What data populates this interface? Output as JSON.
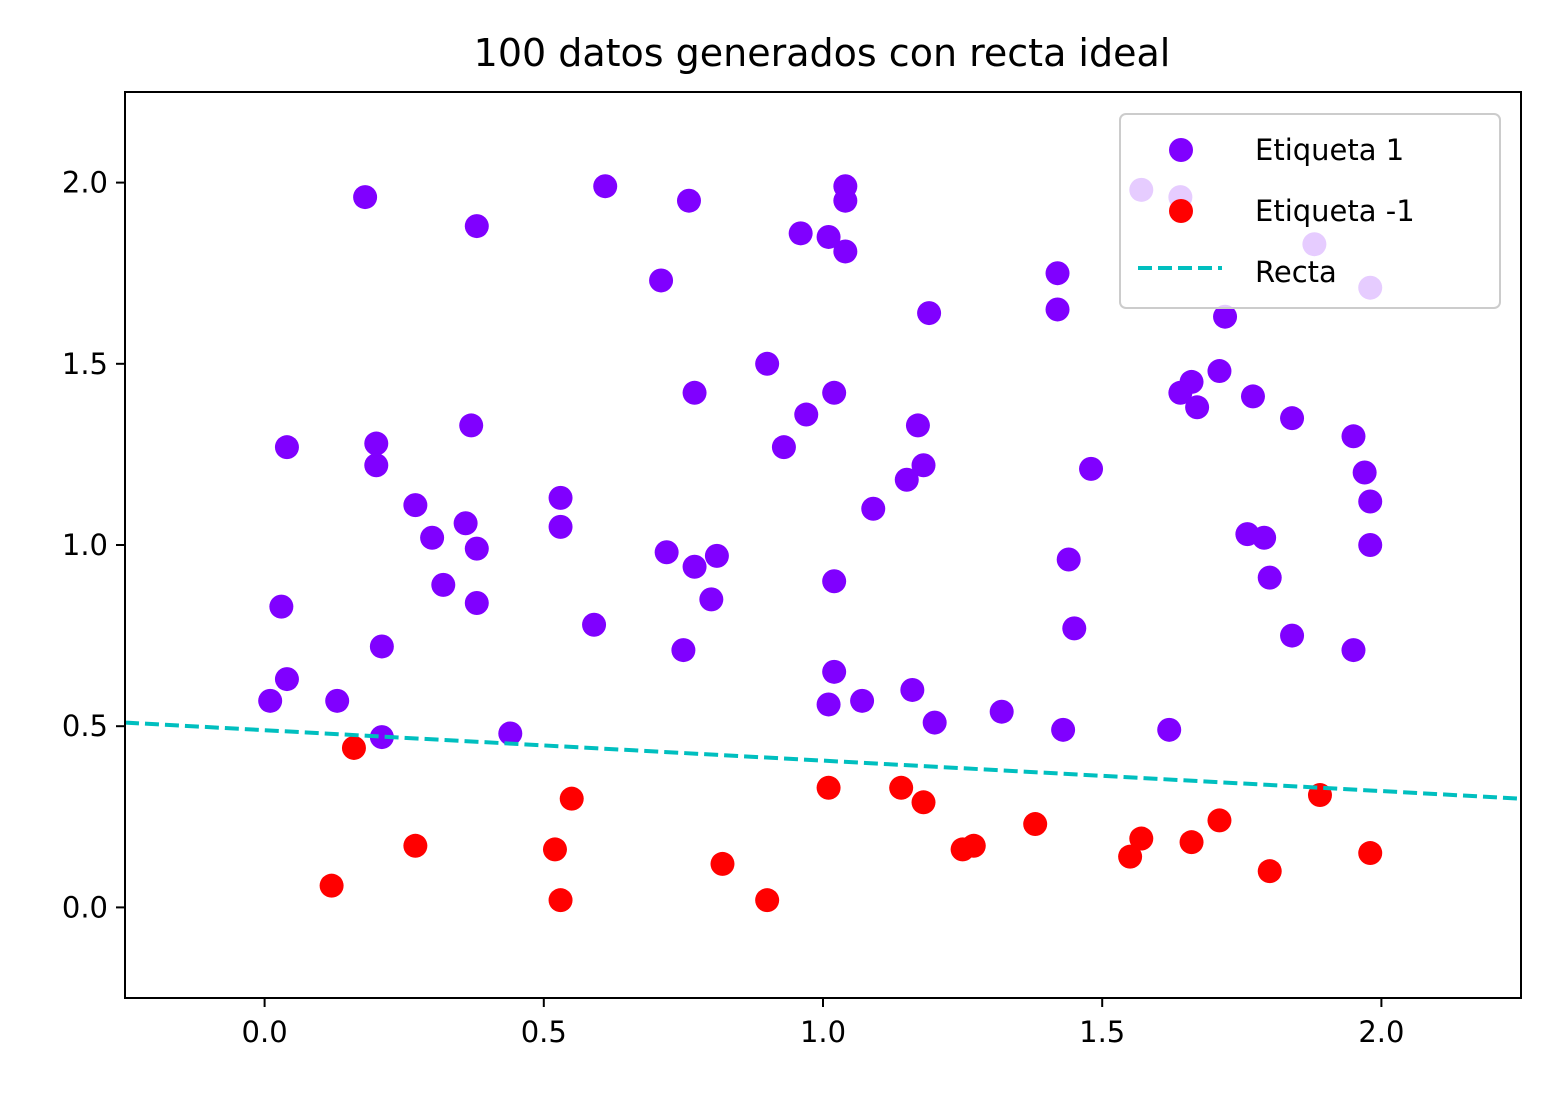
{
  "chart_data": {
    "type": "scatter",
    "title": "100 datos generados con recta ideal",
    "xlabel": "",
    "ylabel": "",
    "xlim": [
      -0.25,
      2.25
    ],
    "ylim": [
      -0.25,
      2.25
    ],
    "x_ticks": [
      "0.0",
      "0.5",
      "1.0",
      "1.5",
      "2.0"
    ],
    "y_ticks": [
      "0.0",
      "0.5",
      "1.0",
      "1.5",
      "2.0"
    ],
    "grid": false,
    "legend_position": "top-right",
    "colors": {
      "label1": "#8000ff",
      "label_neg1": "#ff0000",
      "line": "#00bfbf"
    },
    "series": [
      {
        "name": "Etiqueta 1",
        "points": [
          [
            0.18,
            1.96
          ],
          [
            0.38,
            1.88
          ],
          [
            0.61,
            1.99
          ],
          [
            0.76,
            1.95
          ],
          [
            1.04,
            1.99
          ],
          [
            1.04,
            1.95
          ],
          [
            0.96,
            1.86
          ],
          [
            1.01,
            1.85
          ],
          [
            1.04,
            1.81
          ],
          [
            0.71,
            1.73
          ],
          [
            1.19,
            1.64
          ],
          [
            1.42,
            1.75
          ],
          [
            1.42,
            1.65
          ],
          [
            1.57,
            1.98
          ],
          [
            1.64,
            1.96
          ],
          [
            1.88,
            1.83
          ],
          [
            1.98,
            1.71
          ],
          [
            1.72,
            1.63
          ],
          [
            0.9,
            1.5
          ],
          [
            0.77,
            1.42
          ],
          [
            1.02,
            1.42
          ],
          [
            0.97,
            1.36
          ],
          [
            0.93,
            1.27
          ],
          [
            1.17,
            1.33
          ],
          [
            1.18,
            1.22
          ],
          [
            1.15,
            1.18
          ],
          [
            1.09,
            1.1
          ],
          [
            1.48,
            1.21
          ],
          [
            1.64,
            1.42
          ],
          [
            1.66,
            1.45
          ],
          [
            1.67,
            1.38
          ],
          [
            1.71,
            1.48
          ],
          [
            1.77,
            1.41
          ],
          [
            1.84,
            1.35
          ],
          [
            1.95,
            1.3
          ],
          [
            1.97,
            1.2
          ],
          [
            1.98,
            1.12
          ],
          [
            1.98,
            1.0
          ],
          [
            1.76,
            1.03
          ],
          [
            1.79,
            1.02
          ],
          [
            1.8,
            0.91
          ],
          [
            1.84,
            0.75
          ],
          [
            1.95,
            0.71
          ],
          [
            0.04,
            1.27
          ],
          [
            0.2,
            1.28
          ],
          [
            0.2,
            1.22
          ],
          [
            0.37,
            1.33
          ],
          [
            0.27,
            1.11
          ],
          [
            0.3,
            1.02
          ],
          [
            0.36,
            1.06
          ],
          [
            0.38,
            0.99
          ],
          [
            0.32,
            0.89
          ],
          [
            0.38,
            0.84
          ],
          [
            0.53,
            1.13
          ],
          [
            0.53,
            1.05
          ],
          [
            0.72,
            0.98
          ],
          [
            0.77,
            0.94
          ],
          [
            0.81,
            0.97
          ],
          [
            0.8,
            0.85
          ],
          [
            0.59,
            0.78
          ],
          [
            0.75,
            0.71
          ],
          [
            1.02,
            0.9
          ],
          [
            1.44,
            0.96
          ],
          [
            1.45,
            0.77
          ],
          [
            0.03,
            0.83
          ],
          [
            0.04,
            0.63
          ],
          [
            0.01,
            0.57
          ],
          [
            0.13,
            0.57
          ],
          [
            0.21,
            0.72
          ],
          [
            0.21,
            0.47
          ],
          [
            0.44,
            0.48
          ],
          [
            1.02,
            0.65
          ],
          [
            1.01,
            0.56
          ],
          [
            1.07,
            0.57
          ],
          [
            1.16,
            0.6
          ],
          [
            1.2,
            0.51
          ],
          [
            1.32,
            0.54
          ],
          [
            1.43,
            0.49
          ],
          [
            1.62,
            0.49
          ]
        ]
      },
      {
        "name": "Etiqueta -1",
        "points": [
          [
            0.16,
            0.44
          ],
          [
            0.12,
            0.06
          ],
          [
            0.27,
            0.17
          ],
          [
            0.52,
            0.16
          ],
          [
            0.53,
            0.02
          ],
          [
            0.55,
            0.3
          ],
          [
            0.82,
            0.12
          ],
          [
            0.9,
            0.02
          ],
          [
            1.01,
            0.33
          ],
          [
            1.14,
            0.33
          ],
          [
            1.18,
            0.29
          ],
          [
            1.25,
            0.16
          ],
          [
            1.27,
            0.17
          ],
          [
            1.38,
            0.23
          ],
          [
            1.55,
            0.14
          ],
          [
            1.57,
            0.19
          ],
          [
            1.66,
            0.18
          ],
          [
            1.71,
            0.24
          ],
          [
            1.8,
            0.1
          ],
          [
            1.89,
            0.31
          ],
          [
            1.98,
            0.15
          ]
        ]
      },
      {
        "name": "Recta",
        "line": [
          [
            -0.25,
            0.51
          ],
          [
            2.25,
            0.3
          ]
        ]
      }
    ]
  }
}
